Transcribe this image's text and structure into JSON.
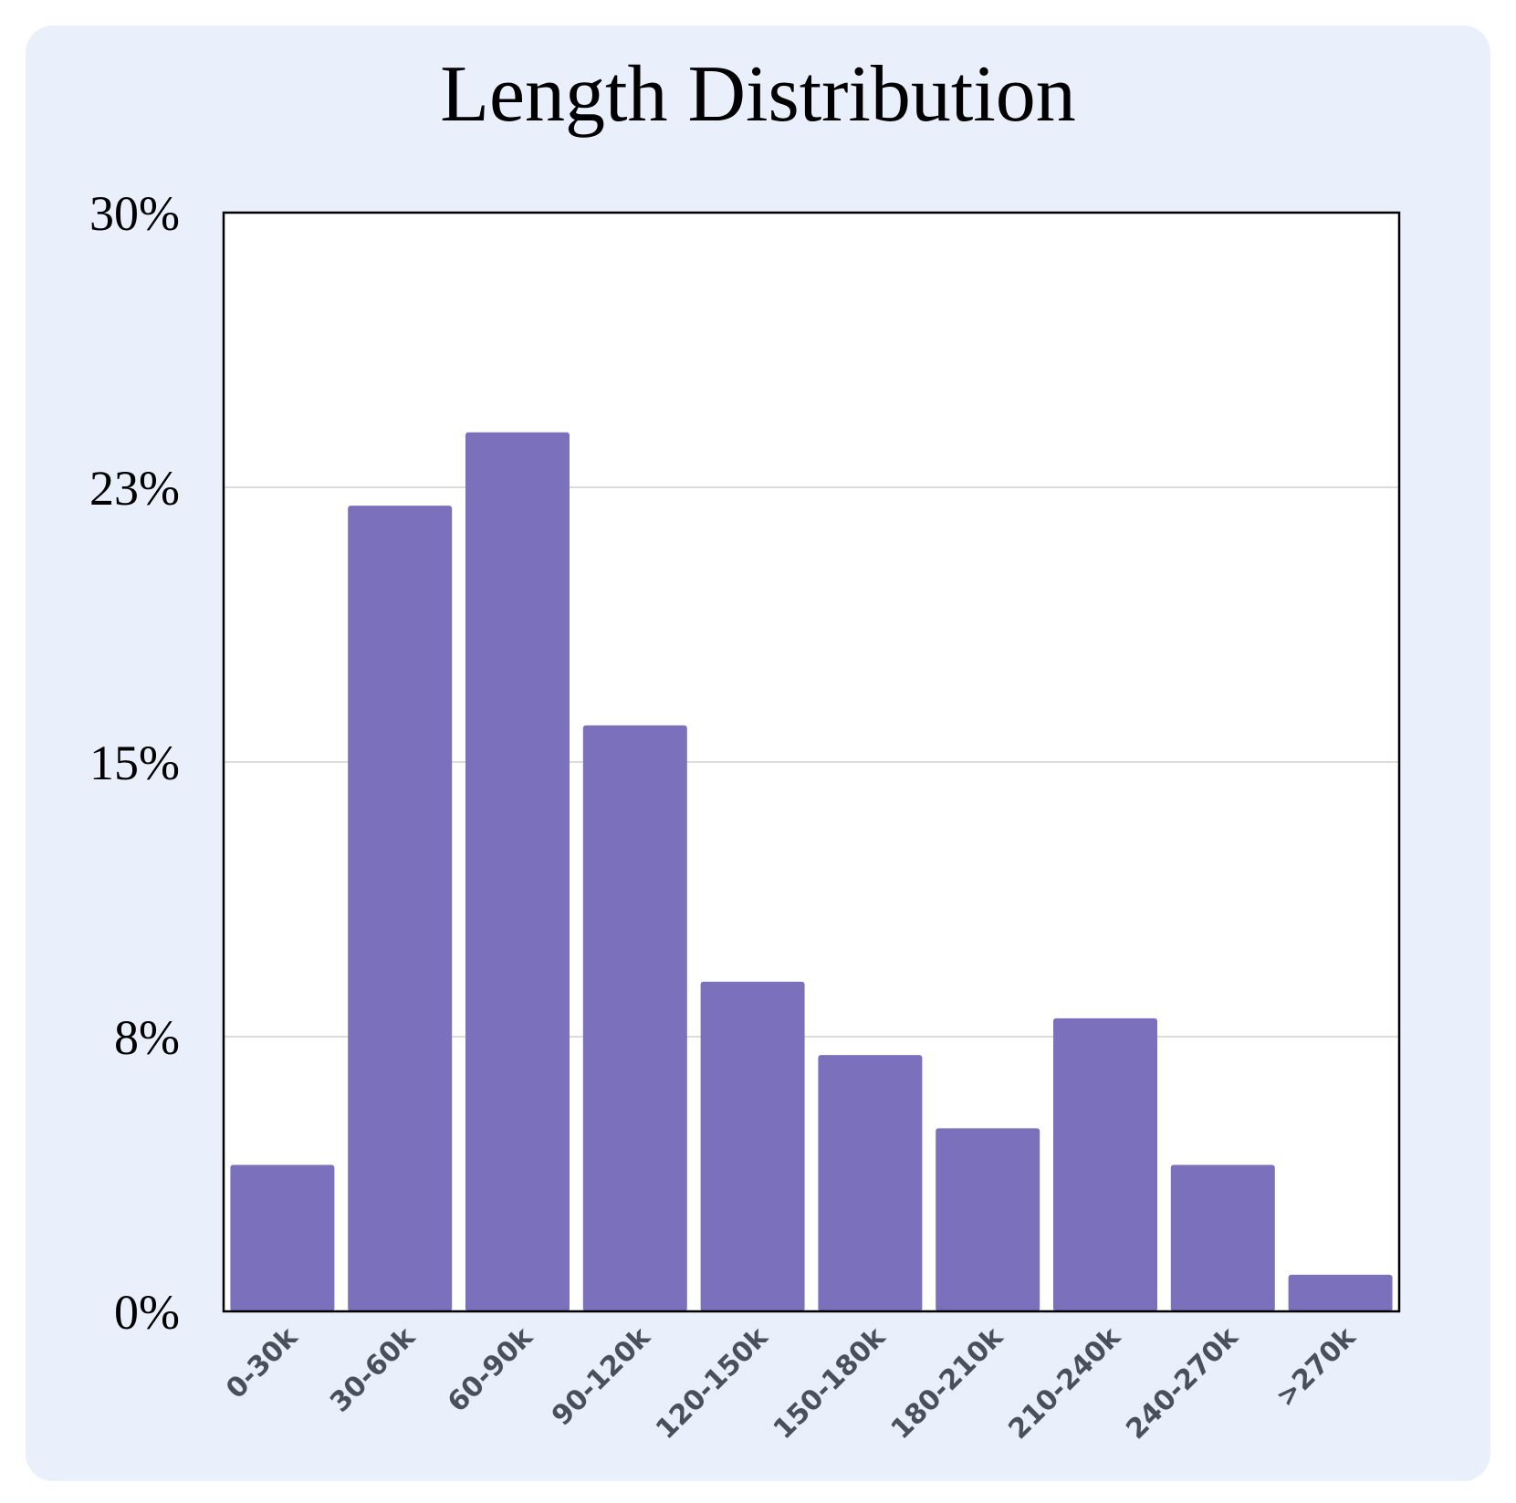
{
  "chart_data": {
    "type": "bar",
    "title": "Length Distribution",
    "xlabel": "",
    "ylabel": "",
    "categories": [
      "0-30k",
      "30-60k",
      "60-90k",
      "90-120k",
      "120-150k",
      "150-180k",
      "180-210k",
      "210-240k",
      "240-270k",
      ">270k"
    ],
    "values": [
      4.0,
      22.0,
      24.0,
      16.0,
      9.0,
      7.0,
      5.0,
      8.0,
      4.0,
      1.0
    ],
    "ylim": [
      0,
      30
    ],
    "yticks": [
      0,
      7.5,
      15,
      22.5,
      30
    ],
    "ytick_labels": [
      "0%",
      "8%",
      "15%",
      "23%",
      "30%"
    ],
    "grid": "horizontal",
    "legend": "none"
  },
  "colors": {
    "background": "#eaeffc",
    "plot_background": "#ffffff",
    "bar": "#7a70bb",
    "grid": "#c8c8c8",
    "axis": "#000000",
    "x_tick_text": "#4a4f5c"
  }
}
